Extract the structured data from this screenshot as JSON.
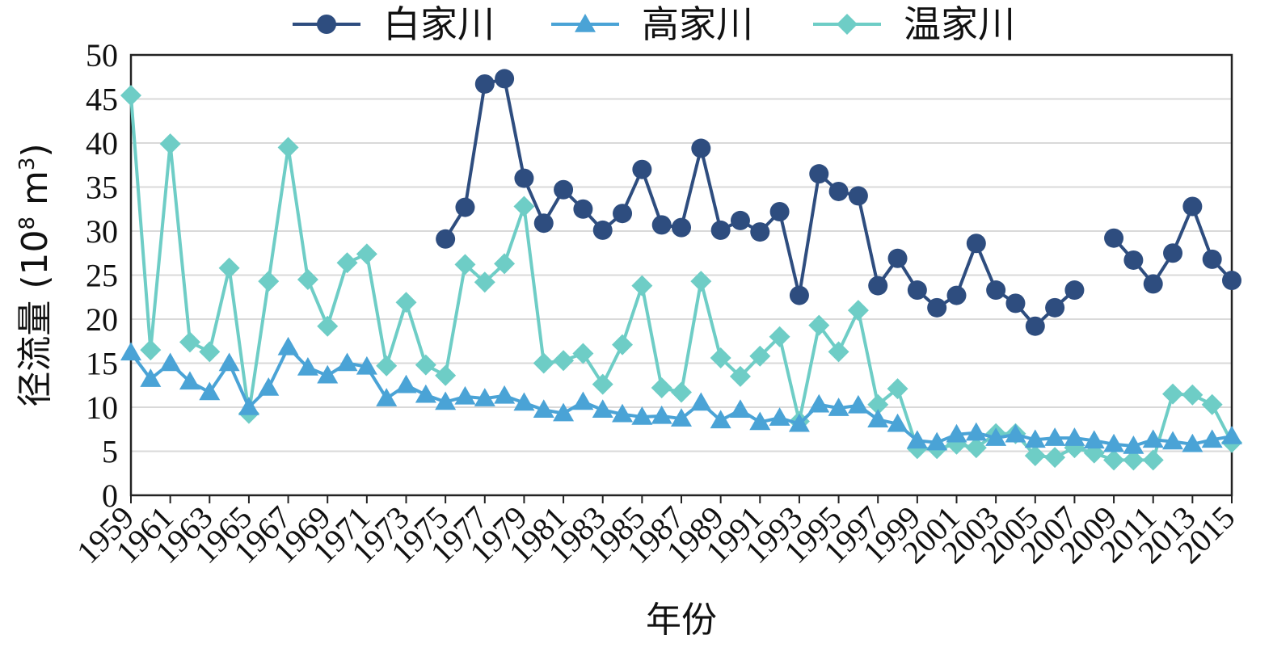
{
  "chart_data": {
    "type": "line",
    "title": "",
    "xlabel": "年份",
    "ylabel": "径流量 (10",
    "ylabel_sup1": "8",
    "ylabel_mid": " m",
    "ylabel_sup2": "3",
    "ylabel_end": ")",
    "ylim": [
      0,
      50
    ],
    "yticks": [
      "0",
      "5",
      "10",
      "15",
      "20",
      "25",
      "30",
      "35",
      "40",
      "45",
      "50"
    ],
    "x": [
      1959,
      1960,
      1961,
      1962,
      1963,
      1964,
      1965,
      1966,
      1967,
      1968,
      1969,
      1970,
      1971,
      1972,
      1973,
      1974,
      1975,
      1976,
      1977,
      1978,
      1979,
      1980,
      1981,
      1982,
      1983,
      1984,
      1985,
      1986,
      1987,
      1988,
      1989,
      1990,
      1991,
      1992,
      1993,
      1994,
      1995,
      1996,
      1997,
      1998,
      1999,
      2000,
      2001,
      2002,
      2003,
      2004,
      2005,
      2006,
      2007,
      2008,
      2009,
      2010,
      2011,
      2012,
      2013,
      2014,
      2015
    ],
    "xticks": [
      "1959",
      "1961",
      "1963",
      "1965",
      "1967",
      "1969",
      "1971",
      "1973",
      "1975",
      "1977",
      "1979",
      "1981",
      "1983",
      "1985",
      "1987",
      "1989",
      "1991",
      "1993",
      "1995",
      "1997",
      "1999",
      "2001",
      "2003",
      "2005",
      "2007",
      "2009",
      "2011",
      "2013",
      "2015"
    ],
    "grid": true,
    "legend_position": "top",
    "series": [
      {
        "name": "白家川",
        "color": "#2e4d7f",
        "marker": "circle",
        "values": [
          null,
          null,
          null,
          null,
          null,
          null,
          null,
          null,
          null,
          null,
          null,
          null,
          null,
          null,
          null,
          null,
          29.1,
          32.7,
          46.7,
          47.3,
          36.0,
          30.9,
          34.7,
          32.5,
          30.1,
          32.0,
          37.0,
          30.7,
          30.4,
          39.4,
          30.1,
          31.2,
          29.9,
          32.2,
          22.7,
          36.5,
          34.5,
          34.0,
          23.8,
          26.9,
          23.3,
          21.3,
          22.7,
          28.6,
          23.3,
          21.8,
          19.2,
          21.3,
          23.3,
          null,
          29.2,
          26.7,
          24.0,
          27.5,
          32.8,
          26.8,
          24.4
        ]
      },
      {
        "name": "高家川",
        "color": "#4aa3d6",
        "marker": "triangle",
        "values": [
          16.2,
          13.2,
          15.0,
          12.9,
          11.7,
          15.0,
          10.0,
          12.2,
          16.8,
          14.5,
          13.6,
          15.0,
          14.6,
          11.0,
          12.5,
          11.4,
          10.6,
          11.2,
          11.0,
          11.3,
          10.5,
          9.7,
          9.3,
          10.6,
          9.7,
          9.2,
          8.9,
          9.0,
          8.7,
          10.5,
          8.5,
          9.7,
          8.3,
          8.8,
          8.1,
          10.3,
          9.9,
          10.2,
          8.6,
          8.1,
          6.2,
          6.0,
          6.9,
          7.1,
          6.5,
          6.9,
          6.3,
          6.5,
          6.5,
          6.2,
          5.8,
          5.6,
          6.3,
          6.1,
          5.8,
          6.3,
          6.7
        ]
      },
      {
        "name": "温家川",
        "color": "#6ecdc6",
        "marker": "diamond",
        "values": [
          45.4,
          16.5,
          39.9,
          17.4,
          16.3,
          25.8,
          9.3,
          24.3,
          39.5,
          24.5,
          19.2,
          26.4,
          27.4,
          14.7,
          21.9,
          14.8,
          13.6,
          26.2,
          24.2,
          26.3,
          32.8,
          15.0,
          15.3,
          16.1,
          12.6,
          17.1,
          23.8,
          12.2,
          11.7,
          24.3,
          15.6,
          13.5,
          15.8,
          18.0,
          8.4,
          19.3,
          16.3,
          21.0,
          10.3,
          12.1,
          5.3,
          5.3,
          5.8,
          5.4,
          7.0,
          7.0,
          4.5,
          4.3,
          5.4,
          4.8,
          4.0,
          4.0,
          4.0,
          11.5,
          11.4,
          10.3,
          6.0
        ]
      }
    ]
  }
}
